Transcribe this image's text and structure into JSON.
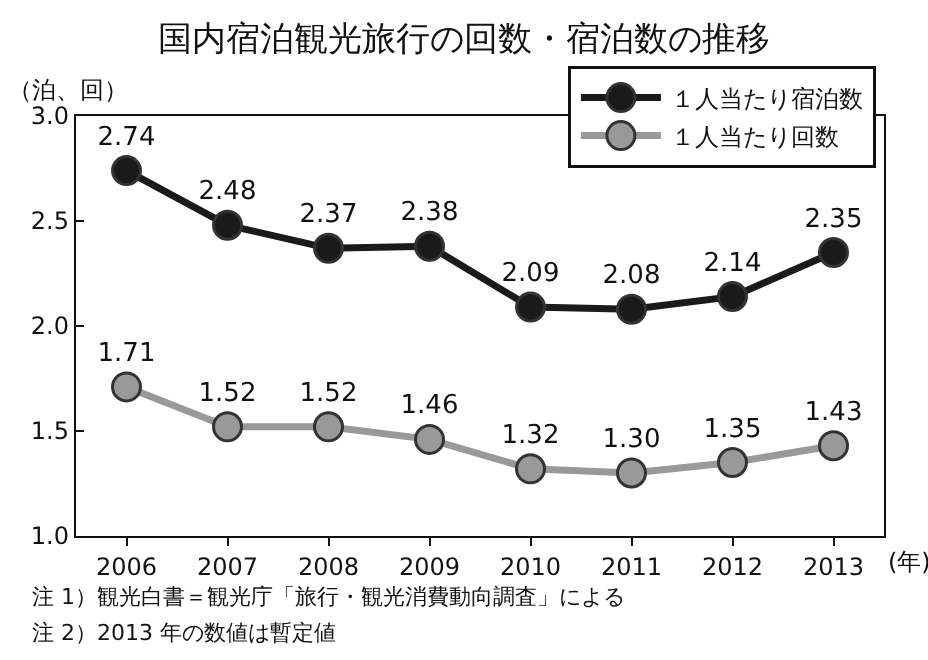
{
  "chart_data": {
    "type": "line",
    "title": "国内宿泊観光旅行の回数・宿泊数の推移",
    "ylabel": "（泊、回）",
    "xlabel": "(年)",
    "categories": [
      "2006",
      "2007",
      "2008",
      "2009",
      "2010",
      "2011",
      "2012",
      "2013"
    ],
    "series": [
      {
        "name": "１人当たり宿泊数",
        "color": "#1a1a1a",
        "values": [
          2.74,
          2.48,
          2.37,
          2.38,
          2.09,
          2.08,
          2.14,
          2.35
        ],
        "value_labels": [
          "2.74",
          "2.48",
          "2.37",
          "2.38",
          "2.09",
          "2.08",
          "2.14",
          "2.35"
        ]
      },
      {
        "name": "１人当たり回数",
        "color": "#999999",
        "values": [
          1.71,
          1.52,
          1.52,
          1.46,
          1.32,
          1.3,
          1.35,
          1.43
        ],
        "value_labels": [
          "1.71",
          "1.52",
          "1.52",
          "1.46",
          "1.32",
          "1.30",
          "1.35",
          "1.43"
        ]
      }
    ],
    "ylim": [
      1,
      3
    ],
    "yticks": [
      {
        "value": 1,
        "label": "1.0"
      },
      {
        "value": 1.5,
        "label": "1.5"
      },
      {
        "value": 2,
        "label": "2.0"
      },
      {
        "value": 2.5,
        "label": "2.5"
      },
      {
        "value": 3,
        "label": "3.0"
      }
    ],
    "grid": false,
    "legend": "top right",
    "marker": "circle",
    "line_style": "solid",
    "annotations": [
      "注 1）観光白書＝観光庁「旅行・観光消費動向調査」による",
      "注 2）2013 年の数値は暫定値"
    ]
  }
}
